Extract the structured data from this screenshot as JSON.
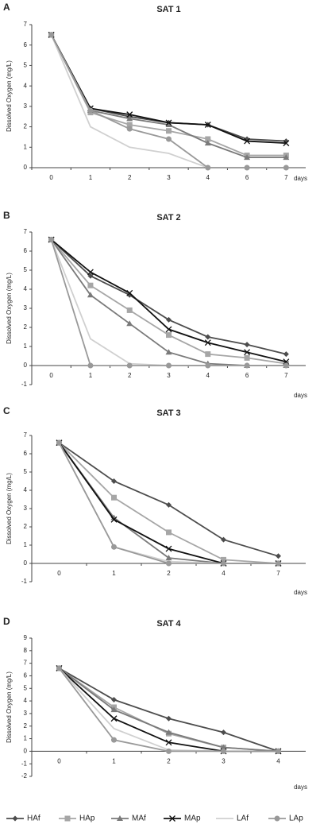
{
  "legend": [
    {
      "name": "HAf",
      "color": "#4d4d4d",
      "marker": "diamond"
    },
    {
      "name": "HAp",
      "color": "#a6a6a6",
      "marker": "square"
    },
    {
      "name": "MAf",
      "color": "#7a7a7a",
      "marker": "triangle"
    },
    {
      "name": "MAp",
      "color": "#111111",
      "marker": "x"
    },
    {
      "name": "LAf",
      "color": "#d0d0d0",
      "marker": "none"
    },
    {
      "name": "LAp",
      "color": "#999999",
      "marker": "circle"
    }
  ],
  "chart_data": [
    {
      "type": "line",
      "panel": "A",
      "title": "SAT 1",
      "x_label": "days",
      "y_label": "Dissolved Oxygen (mg/L)",
      "categories": [
        "0",
        "1",
        "2",
        "3",
        "4",
        "6",
        "7"
      ],
      "ylim": [
        0,
        7
      ],
      "yticks": [
        0,
        1,
        2,
        3,
        4,
        5,
        6,
        7
      ],
      "series": [
        {
          "values": [
            6.5,
            2.9,
            2.5,
            2.2,
            2.1,
            1.4,
            1.3
          ]
        },
        {
          "values": [
            6.5,
            2.7,
            2.1,
            1.8,
            1.4,
            0.6,
            0.6
          ]
        },
        {
          "values": [
            6.5,
            2.8,
            2.4,
            2.1,
            1.2,
            0.5,
            0.5
          ]
        },
        {
          "values": [
            6.5,
            2.9,
            2.6,
            2.2,
            2.1,
            1.3,
            1.2
          ]
        },
        {
          "values": [
            6.5,
            2.0,
            1.0,
            0.7,
            0,
            0,
            0
          ]
        },
        {
          "values": [
            6.5,
            2.8,
            1.9,
            1.4,
            0,
            0,
            0
          ]
        }
      ]
    },
    {
      "type": "line",
      "panel": "B",
      "title": "SAT 2",
      "x_label": "days",
      "y_label": "Dissolved Oxygen (mg/L)",
      "categories": [
        "0",
        "1",
        "2",
        "3",
        "4",
        "6",
        "7"
      ],
      "ylim": [
        -1,
        7
      ],
      "yticks": [
        -1,
        0,
        1,
        2,
        3,
        4,
        5,
        6,
        7
      ],
      "series": [
        {
          "values": [
            6.6,
            4.7,
            3.7,
            2.4,
            1.5,
            1.1,
            0.6
          ]
        },
        {
          "values": [
            6.6,
            4.2,
            2.9,
            1.6,
            0.6,
            0.4,
            0.1
          ]
        },
        {
          "values": [
            6.6,
            3.7,
            2.2,
            0.7,
            0.1,
            0,
            0
          ]
        },
        {
          "values": [
            6.6,
            4.9,
            3.8,
            1.9,
            1.2,
            0.7,
            0.2
          ]
        },
        {
          "values": [
            6.6,
            1.4,
            0.1,
            0,
            0,
            0,
            0
          ]
        },
        {
          "values": [
            6.6,
            0,
            0,
            0,
            0,
            0,
            0
          ]
        }
      ]
    },
    {
      "type": "line",
      "panel": "C",
      "title": "SAT 3",
      "x_label": "days",
      "y_label": "Dissolved Oxygen (mg/L)",
      "categories": [
        "0",
        "1",
        "2",
        "4",
        "7"
      ],
      "ylim": [
        -1,
        7
      ],
      "yticks": [
        -1,
        0,
        1,
        2,
        3,
        4,
        5,
        6,
        7
      ],
      "series": [
        {
          "values": [
            6.6,
            4.5,
            3.2,
            1.3,
            0.4
          ]
        },
        {
          "values": [
            6.6,
            3.6,
            1.7,
            0.2,
            0
          ]
        },
        {
          "values": [
            6.6,
            2.5,
            0.3,
            0,
            0
          ]
        },
        {
          "values": [
            6.6,
            2.4,
            0.8,
            0,
            0
          ]
        },
        {
          "values": [
            6.6,
            0.9,
            0.1,
            0,
            0
          ]
        },
        {
          "values": [
            6.6,
            0.9,
            0,
            0,
            0
          ]
        }
      ]
    },
    {
      "type": "line",
      "panel": "D",
      "title": "SAT 4",
      "x_label": "days",
      "y_label": "Dissolved Oxygen (mg/L)",
      "categories": [
        "0",
        "1",
        "2",
        "3",
        "4"
      ],
      "ylim": [
        -2,
        9
      ],
      "yticks": [
        -2,
        -1,
        0,
        1,
        2,
        3,
        4,
        5,
        6,
        7,
        8,
        9
      ],
      "series": [
        {
          "values": [
            6.6,
            4.1,
            2.6,
            1.5,
            0
          ]
        },
        {
          "values": [
            6.6,
            3.5,
            1.4,
            0.3,
            0
          ]
        },
        {
          "values": [
            6.6,
            3.3,
            1.5,
            0.3,
            0
          ]
        },
        {
          "values": [
            6.6,
            2.6,
            0.7,
            0,
            0
          ]
        },
        {
          "values": [
            6.6,
            1.8,
            0.1,
            0,
            0
          ]
        },
        {
          "values": [
            6.6,
            0.9,
            0,
            0,
            0
          ]
        }
      ]
    }
  ]
}
